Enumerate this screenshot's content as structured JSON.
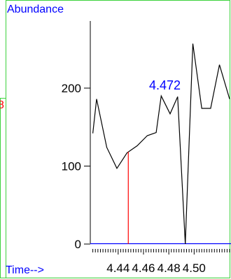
{
  "chart_data": {
    "type": "line",
    "ylabel": "Abundance",
    "xlabel": "Time-->",
    "edge_label": "8",
    "peak_label": "4.472",
    "marker_x": 4.448,
    "xlim": [
      4.418,
      4.528
    ],
    "ylim": [
      0,
      310
    ],
    "x_ticks": [
      4.44,
      4.46,
      4.48,
      4.5
    ],
    "x_tick_labels": [
      "4.44",
      "4.46",
      "4.48",
      "4.50"
    ],
    "y_ticks": [
      0,
      100,
      200
    ],
    "y_tick_labels": [
      "0",
      "100",
      "200"
    ],
    "series": [
      {
        "color": "#000000",
        "x": [
          4.42,
          4.423,
          4.431,
          4.439,
          4.447,
          4.455,
          4.463,
          4.47,
          4.474,
          4.481,
          4.487,
          4.493,
          4.499,
          4.506,
          4.513,
          4.52,
          4.528
        ],
        "y": [
          142,
          186,
          124,
          97,
          117,
          126,
          139,
          143,
          190,
          167,
          189,
          0,
          257,
          174,
          174,
          230,
          186
        ]
      }
    ],
    "colors": {
      "frame": "#3cd23c",
      "axis_titles": "#0000ff",
      "peak_label": "#0000ff",
      "baseline": "#0000ff",
      "marker": "#ff0000",
      "edge_label": "#ff0000"
    }
  }
}
